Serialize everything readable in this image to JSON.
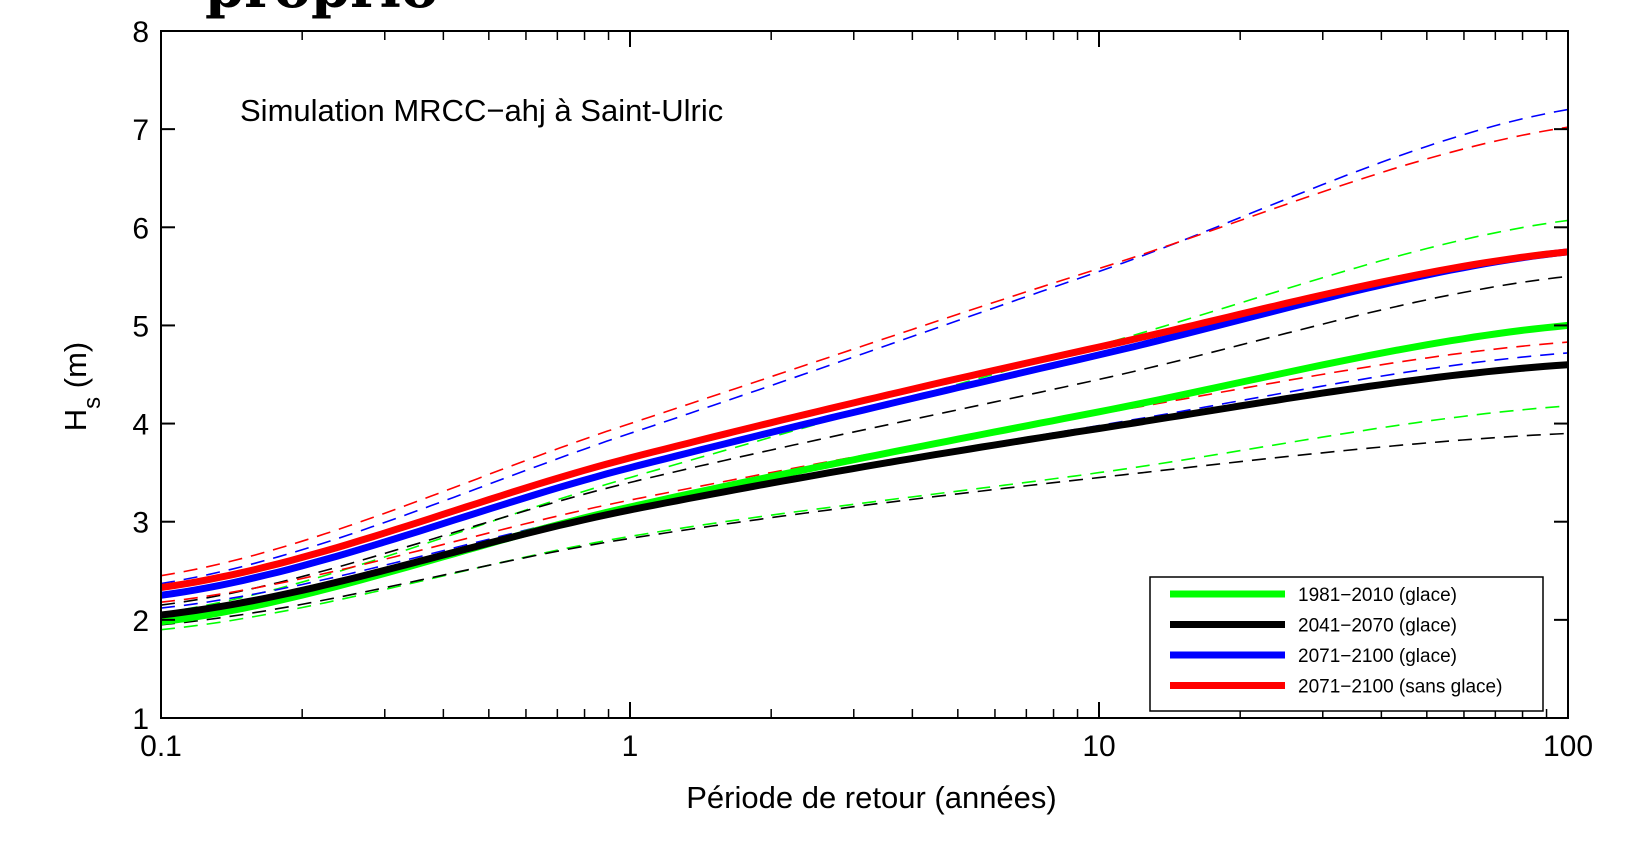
{
  "chart_data": {
    "type": "line",
    "title": "",
    "cut_off_title": "a partially visible bold title cropped at the top edge",
    "annotation": "Simulation MRCC−ahj à Saint-Ulric",
    "xlabel": "Période de retour (années)",
    "ylabel_main": "H",
    "ylabel_sub": "s",
    "ylabel_unit": " (m)",
    "xscale": "log",
    "xlim": [
      0.1,
      100
    ],
    "ylim": [
      1,
      8
    ],
    "xticks": [
      0.1,
      1,
      10,
      100
    ],
    "xtick_labels": [
      "0.1",
      "1",
      "10",
      "100"
    ],
    "yticks": [
      1,
      2,
      3,
      4,
      5,
      6,
      7,
      8
    ],
    "ytick_labels": [
      "1",
      "2",
      "3",
      "4",
      "5",
      "6",
      "7",
      "8"
    ],
    "grid": false,
    "box": true,
    "legend_position": "bottom-right",
    "x": [
      0.1,
      1,
      10,
      100
    ],
    "series": [
      {
        "name": "1981−2010 (glace)",
        "color": "#00ff00",
        "values": [
          1.98,
          3.15,
          4.12,
          5.0
        ],
        "lower": [
          1.9,
          2.85,
          3.5,
          4.18
        ],
        "upper": [
          2.07,
          3.45,
          4.8,
          6.07
        ]
      },
      {
        "name": "2041−2070 (glace)",
        "color": "#000000",
        "values": [
          2.05,
          3.12,
          3.95,
          4.6
        ],
        "lower": [
          1.95,
          2.83,
          3.45,
          3.9
        ],
        "upper": [
          2.15,
          3.4,
          4.45,
          5.5
        ]
      },
      {
        "name": "2071−2100 (glace)",
        "color": "#0000ff",
        "values": [
          2.25,
          3.55,
          4.7,
          5.75
        ],
        "lower": [
          2.12,
          3.15,
          3.98,
          4.72
        ],
        "upper": [
          2.37,
          3.9,
          5.55,
          7.2
        ]
      },
      {
        "name": "2071−2100 (sans glace)",
        "color": "#ff0000",
        "values": [
          2.33,
          3.65,
          4.78,
          5.75
        ],
        "lower": [
          2.18,
          3.22,
          4.1,
          4.83
        ],
        "upper": [
          2.45,
          4.0,
          5.58,
          7.02
        ]
      }
    ]
  }
}
